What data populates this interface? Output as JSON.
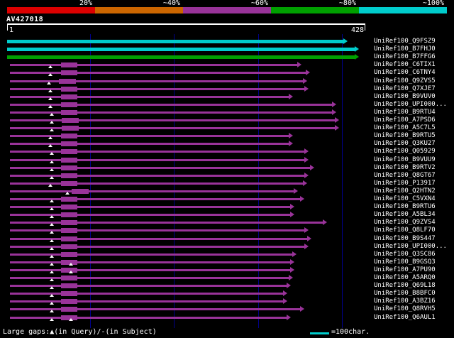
{
  "query": {
    "name": "AV427018"
  },
  "ruler": {
    "start_label": "1",
    "end_label": "428"
  },
  "scale_legend": {
    "labels": [
      "20%",
      "~40%",
      "~60%",
      "~80%",
      "~100%"
    ],
    "colors": [
      "#dd0000",
      "#cc6600",
      "#993399",
      "#00a000",
      "#00cccc"
    ]
  },
  "footer": {
    "gaps_text": "Large gaps:▲(in Query)/-(in Subject)",
    "scale_text": "=100char."
  },
  "colors": {
    "background": "#000000",
    "grid": "#00008b",
    "ruler": "#ffffff",
    "text": "#ffffff"
  },
  "chart_data": {
    "type": "bar",
    "subtype": "blast-alignment-overview",
    "query_name": "AV427018",
    "query_length": 428,
    "x_axis": {
      "min": 1,
      "max": 428,
      "grid_interval": 100,
      "grid": true
    },
    "identity_scale": [
      {
        "label": "20%",
        "color": "#dd0000"
      },
      {
        "label": "~40%",
        "color": "#cc6600"
      },
      {
        "label": "~60%",
        "color": "#993399"
      },
      {
        "label": "~80%",
        "color": "#00a000"
      },
      {
        "label": "~100%",
        "color": "#00cccc"
      }
    ],
    "hits": [
      {
        "label": "UniRef100_Q9FSZ9",
        "identity_bucket": "~100%",
        "color": "#00cccc",
        "start": 1,
        "end": 402,
        "gaps_in_query": [],
        "thick": null
      },
      {
        "label": "UniRef100_B7FHJ0",
        "identity_bucket": "~100%",
        "color": "#00cccc",
        "start": 1,
        "end": 415,
        "gaps_in_query": [],
        "thick": null
      },
      {
        "label": "UniRef100_B7FFG6",
        "identity_bucket": "~80%",
        "color": "#00a000",
        "start": 1,
        "end": 415,
        "gaps_in_query": [],
        "thick": null
      },
      {
        "label": "UniRef100_C6TIX1",
        "identity_bucket": "~60%",
        "color": "#993399",
        "start": 4,
        "end": 347,
        "gaps_in_query": [
          53
        ],
        "thick": [
          65,
          85
        ]
      },
      {
        "label": "UniRef100_C6TNY4",
        "identity_bucket": "~60%",
        "color": "#993399",
        "start": 4,
        "end": 357,
        "gaps_in_query": [
          53
        ],
        "thick": [
          65,
          85
        ]
      },
      {
        "label": "UniRef100_Q9ZVS5",
        "identity_bucket": "~60%",
        "color": "#993399",
        "start": 4,
        "end": 354,
        "gaps_in_query": [
          51
        ],
        "thick": [
          63,
          83
        ]
      },
      {
        "label": "UniRef100_Q7XJE7",
        "identity_bucket": "~60%",
        "color": "#993399",
        "start": 4,
        "end": 355,
        "gaps_in_query": [
          53
        ],
        "thick": [
          65,
          85
        ]
      },
      {
        "label": "UniRef100_B9VUV0",
        "identity_bucket": "~60%",
        "color": "#993399",
        "start": 4,
        "end": 337,
        "gaps_in_query": [
          53
        ],
        "thick": [
          65,
          85
        ]
      },
      {
        "label": "UniRef100_UPI000...",
        "identity_bucket": "~60%",
        "color": "#993399",
        "start": 4,
        "end": 388,
        "gaps_in_query": [
          53
        ],
        "thick": [
          65,
          85
        ]
      },
      {
        "label": "UniRef100_B9RTU4",
        "identity_bucket": "~60%",
        "color": "#993399",
        "start": 4,
        "end": 388,
        "gaps_in_query": [
          54
        ],
        "thick": [
          65,
          85
        ]
      },
      {
        "label": "UniRef100_A7PSD6",
        "identity_bucket": "~60%",
        "color": "#993399",
        "start": 4,
        "end": 392,
        "gaps_in_query": [
          54
        ],
        "thick": [
          66,
          86
        ]
      },
      {
        "label": "UniRef100_A5C7L5",
        "identity_bucket": "~60%",
        "color": "#993399",
        "start": 4,
        "end": 392,
        "gaps_in_query": [
          54
        ],
        "thick": [
          66,
          86
        ]
      },
      {
        "label": "UniRef100_B9RTU5",
        "identity_bucket": "~60%",
        "color": "#993399",
        "start": 4,
        "end": 337,
        "gaps_in_query": [
          53
        ],
        "thick": [
          65,
          85
        ]
      },
      {
        "label": "UniRef100_Q3KU27",
        "identity_bucket": "~60%",
        "color": "#993399",
        "start": 4,
        "end": 337,
        "gaps_in_query": [
          53
        ],
        "thick": [
          65,
          85
        ]
      },
      {
        "label": "UniRef100_Q05929",
        "identity_bucket": "~60%",
        "color": "#993399",
        "start": 4,
        "end": 355,
        "gaps_in_query": [
          54
        ],
        "thick": [
          65,
          85
        ]
      },
      {
        "label": "UniRef100_B9VUU9",
        "identity_bucket": "~60%",
        "color": "#993399",
        "start": 4,
        "end": 355,
        "gaps_in_query": [
          54
        ],
        "thick": [
          65,
          85
        ]
      },
      {
        "label": "UniRef100_B9RTV2",
        "identity_bucket": "~60%",
        "color": "#993399",
        "start": 4,
        "end": 362,
        "gaps_in_query": [
          54
        ],
        "thick": [
          65,
          85
        ]
      },
      {
        "label": "UniRef100_Q8GT67",
        "identity_bucket": "~60%",
        "color": "#993399",
        "start": 4,
        "end": 355,
        "gaps_in_query": [
          54
        ],
        "thick": [
          65,
          85
        ]
      },
      {
        "label": "UniRef100_P13917",
        "identity_bucket": "~60%",
        "color": "#993399",
        "start": 4,
        "end": 354,
        "gaps_in_query": [
          53
        ],
        "thick": [
          65,
          85
        ]
      },
      {
        "label": "UniRef100_Q2HTN2",
        "identity_bucket": "~60%",
        "color": "#993399",
        "start": 4,
        "end": 343,
        "gaps_in_query": [
          73
        ],
        "thick": [
          78,
          98
        ]
      },
      {
        "label": "UniRef100_C5VXN4",
        "identity_bucket": "~60%",
        "color": "#993399",
        "start": 4,
        "end": 350,
        "gaps_in_query": [
          54
        ],
        "thick": [
          65,
          85
        ]
      },
      {
        "label": "UniRef100_B9RTU6",
        "identity_bucket": "~60%",
        "color": "#993399",
        "start": 4,
        "end": 338,
        "gaps_in_query": [
          54
        ],
        "thick": [
          65,
          85
        ]
      },
      {
        "label": "UniRef100_A5BL34",
        "identity_bucket": "~60%",
        "color": "#993399",
        "start": 4,
        "end": 338,
        "gaps_in_query": [
          54
        ],
        "thick": [
          65,
          85
        ]
      },
      {
        "label": "UniRef100_Q9ZVS4",
        "identity_bucket": "~60%",
        "color": "#993399",
        "start": 4,
        "end": 377,
        "gaps_in_query": [
          54
        ],
        "thick": [
          65,
          85
        ]
      },
      {
        "label": "UniRef100_Q8LF70",
        "identity_bucket": "~60%",
        "color": "#993399",
        "start": 4,
        "end": 355,
        "gaps_in_query": [
          54
        ],
        "thick": [
          65,
          85
        ]
      },
      {
        "label": "UniRef100_B9S447",
        "identity_bucket": "~60%",
        "color": "#993399",
        "start": 4,
        "end": 359,
        "gaps_in_query": [
          54
        ],
        "thick": [
          65,
          85
        ]
      },
      {
        "label": "UniRef100_UPI000...",
        "identity_bucket": "~60%",
        "color": "#993399",
        "start": 4,
        "end": 355,
        "gaps_in_query": [
          54
        ],
        "thick": [
          65,
          85
        ]
      },
      {
        "label": "UniRef100_Q3SC86",
        "identity_bucket": "~60%",
        "color": "#993399",
        "start": 4,
        "end": 341,
        "gaps_in_query": [
          54
        ],
        "thick": [
          65,
          85
        ]
      },
      {
        "label": "UniRef100_B9GSQ3",
        "identity_bucket": "~60%",
        "color": "#993399",
        "start": 4,
        "end": 338,
        "gaps_in_query": [
          54,
          77
        ],
        "thick": [
          65,
          85
        ]
      },
      {
        "label": "UniRef100_A7PU90",
        "identity_bucket": "~60%",
        "color": "#993399",
        "start": 4,
        "end": 338,
        "gaps_in_query": [
          54,
          77
        ],
        "thick": [
          65,
          85
        ]
      },
      {
        "label": "UniRef100_A5ARQ0",
        "identity_bucket": "~60%",
        "color": "#993399",
        "start": 4,
        "end": 337,
        "gaps_in_query": [
          54
        ],
        "thick": [
          65,
          85
        ]
      },
      {
        "label": "UniRef100_Q69L18",
        "identity_bucket": "~60%",
        "color": "#993399",
        "start": 4,
        "end": 334,
        "gaps_in_query": [
          54
        ],
        "thick": [
          65,
          85
        ]
      },
      {
        "label": "UniRef100_B8BFC0",
        "identity_bucket": "~60%",
        "color": "#993399",
        "start": 4,
        "end": 330,
        "gaps_in_query": [
          54
        ],
        "thick": [
          65,
          85
        ]
      },
      {
        "label": "UniRef100_A3BZ16",
        "identity_bucket": "~60%",
        "color": "#993399",
        "start": 4,
        "end": 330,
        "gaps_in_query": [
          54
        ],
        "thick": [
          65,
          85
        ]
      },
      {
        "label": "UniRef100_Q8RVH5",
        "identity_bucket": "~60%",
        "color": "#993399",
        "start": 4,
        "end": 350,
        "gaps_in_query": [
          54
        ],
        "thick": [
          65,
          85
        ]
      },
      {
        "label": "UniRef100_Q6AUL1",
        "identity_bucket": "~60%",
        "color": "#993399",
        "start": 4,
        "end": 334,
        "gaps_in_query": [
          54,
          77
        ],
        "thick": [
          65,
          85
        ]
      }
    ]
  }
}
